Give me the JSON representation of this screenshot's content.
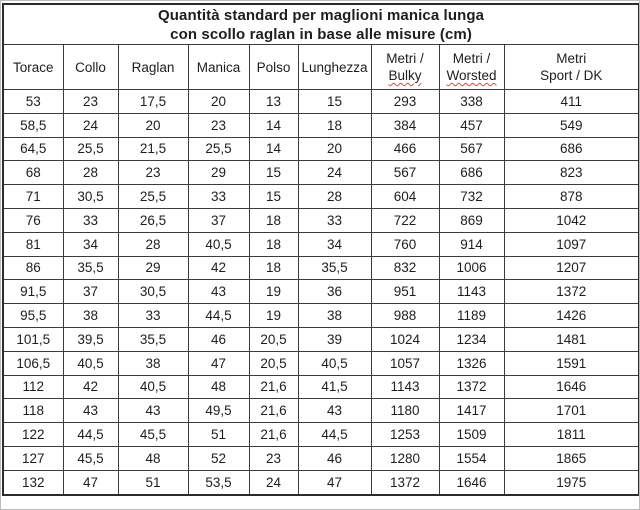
{
  "title": {
    "line1": "Quantità standard per maglioni manica lunga",
    "line2": "con scollo raglan in base alle misure (cm)"
  },
  "table": {
    "columns": [
      {
        "id": "torace",
        "lines": [
          "Torace"
        ],
        "spellcheck": [
          false
        ]
      },
      {
        "id": "collo",
        "lines": [
          "Collo"
        ],
        "spellcheck": [
          false
        ]
      },
      {
        "id": "raglan",
        "lines": [
          "Raglan"
        ],
        "spellcheck": [
          false
        ]
      },
      {
        "id": "manica",
        "lines": [
          "Manica"
        ],
        "spellcheck": [
          false
        ]
      },
      {
        "id": "polso",
        "lines": [
          "Polso"
        ],
        "spellcheck": [
          false
        ]
      },
      {
        "id": "lunghezza",
        "lines": [
          "Lunghezza"
        ],
        "spellcheck": [
          false
        ]
      },
      {
        "id": "metri-bulky",
        "lines": [
          "Metri /",
          "Bulky"
        ],
        "spellcheck": [
          false,
          true
        ]
      },
      {
        "id": "metri-worsted",
        "lines": [
          "Metri /",
          "Worsted"
        ],
        "spellcheck": [
          false,
          true
        ]
      },
      {
        "id": "metri-sport-dk",
        "lines": [
          "Metri",
          "Sport / DK"
        ],
        "spellcheck": [
          false,
          false
        ]
      }
    ],
    "rows": [
      [
        "53",
        "23",
        "17,5",
        "20",
        "13",
        "15",
        "293",
        "338",
        "411"
      ],
      [
        "58,5",
        "24",
        "20",
        "23",
        "14",
        "18",
        "384",
        "457",
        "549"
      ],
      [
        "64,5",
        "25,5",
        "21,5",
        "25,5",
        "14",
        "20",
        "466",
        "567",
        "686"
      ],
      [
        "68",
        "28",
        "23",
        "29",
        "15",
        "24",
        "567",
        "686",
        "823"
      ],
      [
        "71",
        "30,5",
        "25,5",
        "33",
        "15",
        "28",
        "604",
        "732",
        "878"
      ],
      [
        "76",
        "33",
        "26,5",
        "37",
        "18",
        "33",
        "722",
        "869",
        "1042"
      ],
      [
        "81",
        "34",
        "28",
        "40,5",
        "18",
        "34",
        "760",
        "914",
        "1097"
      ],
      [
        "86",
        "35,5",
        "29",
        "42",
        "18",
        "35,5",
        "832",
        "1006",
        "1207"
      ],
      [
        "91,5",
        "37",
        "30,5",
        "43",
        "19",
        "36",
        "951",
        "1143",
        "1372"
      ],
      [
        "95,5",
        "38",
        "33",
        "44,5",
        "19",
        "38",
        "988",
        "1189",
        "1426"
      ],
      [
        "101,5",
        "39,5",
        "35,5",
        "46",
        "20,5",
        "39",
        "1024",
        "1234",
        "1481"
      ],
      [
        "106,5",
        "40,5",
        "38",
        "47",
        "20,5",
        "40,5",
        "1057",
        "1326",
        "1591"
      ],
      [
        "112",
        "42",
        "40,5",
        "48",
        "21,6",
        "41,5",
        "1143",
        "1372",
        "1646"
      ],
      [
        "118",
        "43",
        "43",
        "49,5",
        "21,6",
        "43",
        "1180",
        "1417",
        "1701"
      ],
      [
        "122",
        "44,5",
        "45,5",
        "51",
        "21,6",
        "44,5",
        "1253",
        "1509",
        "1811"
      ],
      [
        "127",
        "45,5",
        "48",
        "52",
        "23",
        "46",
        "1280",
        "1554",
        "1865"
      ],
      [
        "132",
        "47",
        "51",
        "53,5",
        "24",
        "47",
        "1372",
        "1646",
        "1975"
      ]
    ]
  },
  "colors": {
    "text": "#1e1e1e",
    "inner_border": "#3c3c3c",
    "outer_border": "#2b2b2b",
    "image_frame": "#bcbcbc",
    "spellcheck_underline": "#ff3b30",
    "background": "#ffffff"
  }
}
